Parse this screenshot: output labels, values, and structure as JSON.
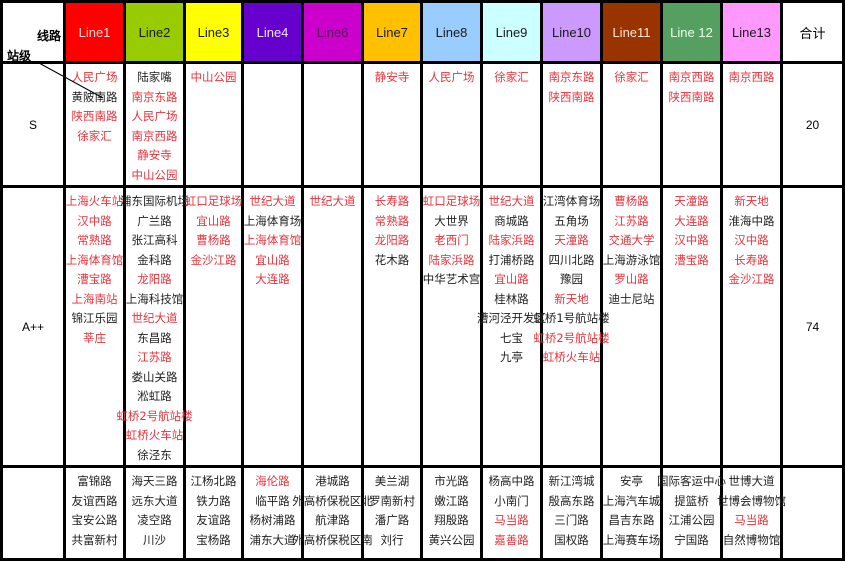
{
  "corner": {
    "top": "线路",
    "bottom": "站级"
  },
  "total_header": "合计",
  "lines": [
    {
      "name": "Line1",
      "bg": "#ff0000",
      "fg": "#ffd6d6"
    },
    {
      "name": "Line2",
      "bg": "#99cc00",
      "fg": "#1a1a1a"
    },
    {
      "name": "Line3",
      "bg": "#ffff00",
      "fg": "#1a1a1a"
    },
    {
      "name": "Line4",
      "bg": "#6600cc",
      "fg": "#f0e0ff"
    },
    {
      "name": "Line6",
      "bg": "#cc00cc",
      "fg": "#5a1a5a"
    },
    {
      "name": "Line7",
      "bg": "#ffc000",
      "fg": "#1a1a1a"
    },
    {
      "name": "Line8",
      "bg": "#99ccff",
      "fg": "#1a1a1a"
    },
    {
      "name": "Line9",
      "bg": "#ccffff",
      "fg": "#1a1a1a"
    },
    {
      "name": "Line10",
      "bg": "#cc99ff",
      "fg": "#1a1a1a"
    },
    {
      "name": "Line11",
      "bg": "#993300",
      "fg": "#ffe6d6"
    },
    {
      "name": "Line 12",
      "bg": "#55a060",
      "fg": "#eaffea"
    },
    {
      "name": "Line13",
      "bg": "#ff99ff",
      "fg": "#1a1a1a"
    }
  ],
  "rows": [
    {
      "label": "S",
      "total": "20",
      "cells": [
        [
          {
            "t": "人民广场",
            "red": true
          },
          {
            "t": "黄陂南路"
          },
          {
            "t": "陕西南路",
            "red": true
          },
          {
            "t": "徐家汇",
            "red": true
          }
        ],
        [
          {
            "t": "陆家嘴"
          },
          {
            "t": "南京东路",
            "red": true
          },
          {
            "t": "人民广场",
            "red": true
          },
          {
            "t": "南京西路",
            "red": true
          },
          {
            "t": "静安寺",
            "red": true
          },
          {
            "t": "中山公园",
            "red": true
          }
        ],
        [
          {
            "t": "中山公园",
            "red": true
          }
        ],
        [],
        [],
        [
          {
            "t": "静安寺",
            "red": true
          }
        ],
        [
          {
            "t": "人民广场",
            "red": true
          }
        ],
        [
          {
            "t": "徐家汇",
            "red": true
          }
        ],
        [
          {
            "t": "南京东路",
            "red": true
          },
          {
            "t": "陕西南路",
            "red": true
          }
        ],
        [
          {
            "t": "徐家汇",
            "red": true
          }
        ],
        [
          {
            "t": "南京西路",
            "red": true
          },
          {
            "t": "陕西南路",
            "red": true
          }
        ],
        [
          {
            "t": "南京西路",
            "red": true
          }
        ]
      ]
    },
    {
      "label": "A++",
      "total": "74",
      "cells": [
        [
          {
            "t": "上海火车站",
            "red": true
          },
          {
            "t": "汉中路",
            "red": true
          },
          {
            "t": "常熟路",
            "red": true
          },
          {
            "t": "上海体育馆",
            "red": true
          },
          {
            "t": "漕宝路",
            "red": true
          },
          {
            "t": "上海南站",
            "red": true
          },
          {
            "t": "锦江乐园"
          },
          {
            "t": "莘庄",
            "red": true
          }
        ],
        [
          {
            "t": "浦东国际机场"
          },
          {
            "t": "广兰路"
          },
          {
            "t": "张江高科"
          },
          {
            "t": "金科路"
          },
          {
            "t": "龙阳路",
            "red": true
          },
          {
            "t": "上海科技馆"
          },
          {
            "t": "世纪大道",
            "red": true
          },
          {
            "t": "东昌路"
          },
          {
            "t": "江苏路",
            "red": true
          },
          {
            "t": "娄山关路"
          },
          {
            "t": "淞虹路"
          },
          {
            "t": "虹桥2号航站楼",
            "red": true
          },
          {
            "t": "虹桥火车站",
            "red": true
          },
          {
            "t": "徐泾东"
          }
        ],
        [
          {
            "t": "虹口足球场",
            "red": true
          },
          {
            "t": "宜山路",
            "red": true
          },
          {
            "t": "曹杨路",
            "red": true
          },
          {
            "t": "金沙江路",
            "red": true
          }
        ],
        [
          {
            "t": "世纪大道",
            "red": true
          },
          {
            "t": "上海体育场"
          },
          {
            "t": "上海体育馆",
            "red": true
          },
          {
            "t": "宜山路",
            "red": true
          },
          {
            "t": "大连路",
            "red": true
          }
        ],
        [
          {
            "t": "世纪大道",
            "red": true
          }
        ],
        [
          {
            "t": "长寿路",
            "red": true
          },
          {
            "t": "常熟路",
            "red": true
          },
          {
            "t": "龙阳路",
            "red": true
          },
          {
            "t": "花木路"
          }
        ],
        [
          {
            "t": "虹口足球场",
            "red": true
          },
          {
            "t": "大世界"
          },
          {
            "t": "老西门",
            "red": true
          },
          {
            "t": "陆家浜路",
            "red": true
          },
          {
            "t": "中华艺术宫"
          }
        ],
        [
          {
            "t": "世纪大道",
            "red": true
          },
          {
            "t": "商城路"
          },
          {
            "t": "陆家浜路",
            "red": true
          },
          {
            "t": "打浦桥路"
          },
          {
            "t": "宜山路",
            "red": true
          },
          {
            "t": "桂林路"
          },
          {
            "t": "漕河泾开发区"
          },
          {
            "t": "七宝"
          },
          {
            "t": "九亭"
          }
        ],
        [
          {
            "t": "江湾体育场"
          },
          {
            "t": "五角场"
          },
          {
            "t": "天潼路",
            "red": true
          },
          {
            "t": "四川北路"
          },
          {
            "t": "豫园"
          },
          {
            "t": "新天地",
            "red": true
          },
          {
            "t": "虹桥1号航站楼"
          },
          {
            "t": "虹桥2号航站楼",
            "red": true
          },
          {
            "t": "虹桥火车站",
            "red": true
          }
        ],
        [
          {
            "t": "曹杨路",
            "red": true
          },
          {
            "t": "江苏路",
            "red": true
          },
          {
            "t": "交通大学",
            "red": true
          },
          {
            "t": "上海游泳馆"
          },
          {
            "t": "罗山路",
            "red": true
          },
          {
            "t": "迪士尼站"
          }
        ],
        [
          {
            "t": "天潼路",
            "red": true
          },
          {
            "t": "大连路",
            "red": true
          },
          {
            "t": "汉中路",
            "red": true
          },
          {
            "t": "漕宝路",
            "red": true
          }
        ],
        [
          {
            "t": "新天地",
            "red": true
          },
          {
            "t": "淮海中路"
          },
          {
            "t": "汉中路",
            "red": true
          },
          {
            "t": "长寿路",
            "red": true
          },
          {
            "t": "金沙江路",
            "red": true
          }
        ]
      ]
    },
    {
      "label": "",
      "total": "",
      "cells": [
        [
          {
            "t": "富锦路"
          },
          {
            "t": "友谊西路"
          },
          {
            "t": "宝安公路"
          },
          {
            "t": "共富新村"
          }
        ],
        [
          {
            "t": "海天三路"
          },
          {
            "t": "远东大道"
          },
          {
            "t": "凌空路"
          },
          {
            "t": "川沙"
          }
        ],
        [
          {
            "t": "江杨北路"
          },
          {
            "t": "铁力路"
          },
          {
            "t": "友谊路"
          },
          {
            "t": "宝杨路"
          }
        ],
        [
          {
            "t": "海伦路",
            "red": true
          },
          {
            "t": "临平路"
          },
          {
            "t": "杨树浦路"
          },
          {
            "t": "浦东大道"
          }
        ],
        [
          {
            "t": "港城路"
          },
          {
            "t": "外高桥保税区北"
          },
          {
            "t": "航津路"
          },
          {
            "t": "外高桥保税区南"
          }
        ],
        [
          {
            "t": "美兰湖"
          },
          {
            "t": "罗南新村"
          },
          {
            "t": "潘广路"
          },
          {
            "t": "刘行"
          }
        ],
        [
          {
            "t": "市光路"
          },
          {
            "t": "嫩江路"
          },
          {
            "t": "翔殷路"
          },
          {
            "t": "黄兴公园"
          }
        ],
        [
          {
            "t": "杨高中路"
          },
          {
            "t": "小南门"
          },
          {
            "t": "马当路",
            "red": true
          },
          {
            "t": "嘉善路",
            "red": true
          }
        ],
        [
          {
            "t": "新江湾城"
          },
          {
            "t": "殷高东路"
          },
          {
            "t": "三门路"
          },
          {
            "t": "国权路"
          }
        ],
        [
          {
            "t": "安亭"
          },
          {
            "t": "上海汽车城"
          },
          {
            "t": "昌吉东路"
          },
          {
            "t": "上海赛车场"
          }
        ],
        [
          {
            "t": "国际客运中心"
          },
          {
            "t": "提篮桥"
          },
          {
            "t": "江浦公园"
          },
          {
            "t": "宁国路"
          }
        ],
        [
          {
            "t": "世博大道"
          },
          {
            "t": "世博会博物馆"
          },
          {
            "t": "马当路",
            "red": true
          },
          {
            "t": "自然博物馆"
          }
        ]
      ]
    }
  ]
}
